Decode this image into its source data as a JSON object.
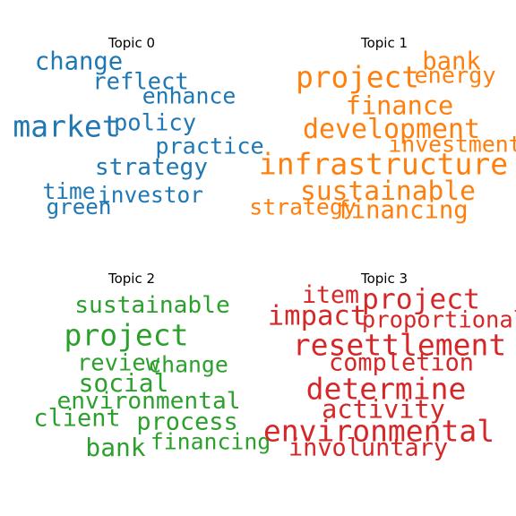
{
  "chart_data": [
    {
      "type": "wordcloud",
      "title": "Topic 0",
      "color": "#1f77b4",
      "words": [
        {
          "text": "market",
          "weight": 1.0
        },
        {
          "text": "change",
          "weight": 0.66
        },
        {
          "text": "strategy",
          "weight": 0.6
        },
        {
          "text": "policy",
          "weight": 0.56
        },
        {
          "text": "reflect",
          "weight": 0.56
        },
        {
          "text": "practice",
          "weight": 0.54
        },
        {
          "text": "enhance",
          "weight": 0.52
        },
        {
          "text": "time",
          "weight": 0.5
        },
        {
          "text": "investor",
          "weight": 0.5
        },
        {
          "text": "green",
          "weight": 0.48
        }
      ]
    },
    {
      "type": "wordcloud",
      "title": "Topic 1",
      "color": "#ff7f0e",
      "words": [
        {
          "text": "infrastructure",
          "weight": 1.0
        },
        {
          "text": "project",
          "weight": 0.98
        },
        {
          "text": "development",
          "weight": 0.82
        },
        {
          "text": "sustainable",
          "weight": 0.8
        },
        {
          "text": "finance",
          "weight": 0.74
        },
        {
          "text": "financing",
          "weight": 0.66
        },
        {
          "text": "bank",
          "weight": 0.66
        },
        {
          "text": "energy",
          "weight": 0.54
        },
        {
          "text": "investment",
          "weight": 0.52
        },
        {
          "text": "strategy",
          "weight": 0.52
        }
      ]
    },
    {
      "type": "wordcloud",
      "title": "Topic 2",
      "color": "#2ca02c",
      "words": [
        {
          "text": "project",
          "weight": 1.0
        },
        {
          "text": "social",
          "weight": 0.7
        },
        {
          "text": "bank",
          "weight": 0.7
        },
        {
          "text": "client",
          "weight": 0.64
        },
        {
          "text": "process",
          "weight": 0.64
        },
        {
          "text": "sustainable",
          "weight": 0.6
        },
        {
          "text": "environmental",
          "weight": 0.6
        },
        {
          "text": "review",
          "weight": 0.56
        },
        {
          "text": "change",
          "weight": 0.52
        },
        {
          "text": "financing",
          "weight": 0.52
        }
      ]
    },
    {
      "type": "wordcloud",
      "title": "Topic 3",
      "color": "#d62728",
      "words": [
        {
          "text": "resettlement",
          "weight": 1.0
        },
        {
          "text": "environmental",
          "weight": 1.0
        },
        {
          "text": "determine",
          "weight": 1.0
        },
        {
          "text": "project",
          "weight": 0.9
        },
        {
          "text": "impact",
          "weight": 0.86
        },
        {
          "text": "activity",
          "weight": 0.74
        },
        {
          "text": "completion",
          "weight": 0.64
        },
        {
          "text": "involuntary",
          "weight": 0.64
        },
        {
          "text": "item",
          "weight": 0.62
        },
        {
          "text": "proportional",
          "weight": 0.56
        }
      ]
    }
  ]
}
